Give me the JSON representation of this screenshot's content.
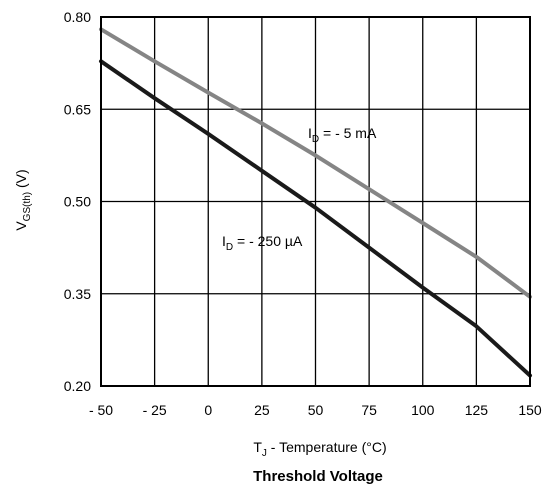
{
  "chart_data": {
    "type": "line",
    "title": "Threshold Voltage",
    "xlabel": {
      "prefix": "T",
      "sub": "J",
      "suffix": " - Temperature (°C)"
    },
    "ylabel": {
      "prefix": "V",
      "sub": "GS(th)",
      "suffix": " (V)"
    },
    "xlim": [
      -50,
      150
    ],
    "ylim": [
      0.2,
      0.8
    ],
    "xticks": [
      -50,
      -25,
      0,
      25,
      50,
      75,
      100,
      125,
      150
    ],
    "xtick_labels": [
      "- 50",
      "- 25",
      "0",
      "25",
      "50",
      "75",
      "100",
      "125",
      "150"
    ],
    "yticks": [
      0.2,
      0.35,
      0.5,
      0.65,
      0.8
    ],
    "ytick_labels": [
      "0.20",
      "0.35",
      "0.50",
      "0.65",
      "0.80"
    ],
    "grid": true,
    "series": [
      {
        "name": "I_D = - 5 mA",
        "label": {
          "prefix": "I",
          "sub": "D",
          "suffix": " = - 5 mA"
        },
        "color": "#858585",
        "x": [
          -50,
          -25,
          0,
          25,
          50,
          75,
          100,
          125,
          150
        ],
        "y": [
          0.78,
          0.728,
          0.677,
          0.627,
          0.575,
          0.52,
          0.465,
          0.41,
          0.345
        ]
      },
      {
        "name": "I_D = - 250 µA",
        "label": {
          "prefix": "I",
          "sub": "D",
          "suffix": " = - 250 µA"
        },
        "color": "#1a1a1a",
        "x": [
          -50,
          -25,
          0,
          25,
          50,
          75,
          100,
          125,
          150
        ],
        "y": [
          0.728,
          0.668,
          0.61,
          0.55,
          0.49,
          0.425,
          0.36,
          0.297,
          0.217
        ]
      }
    ]
  }
}
